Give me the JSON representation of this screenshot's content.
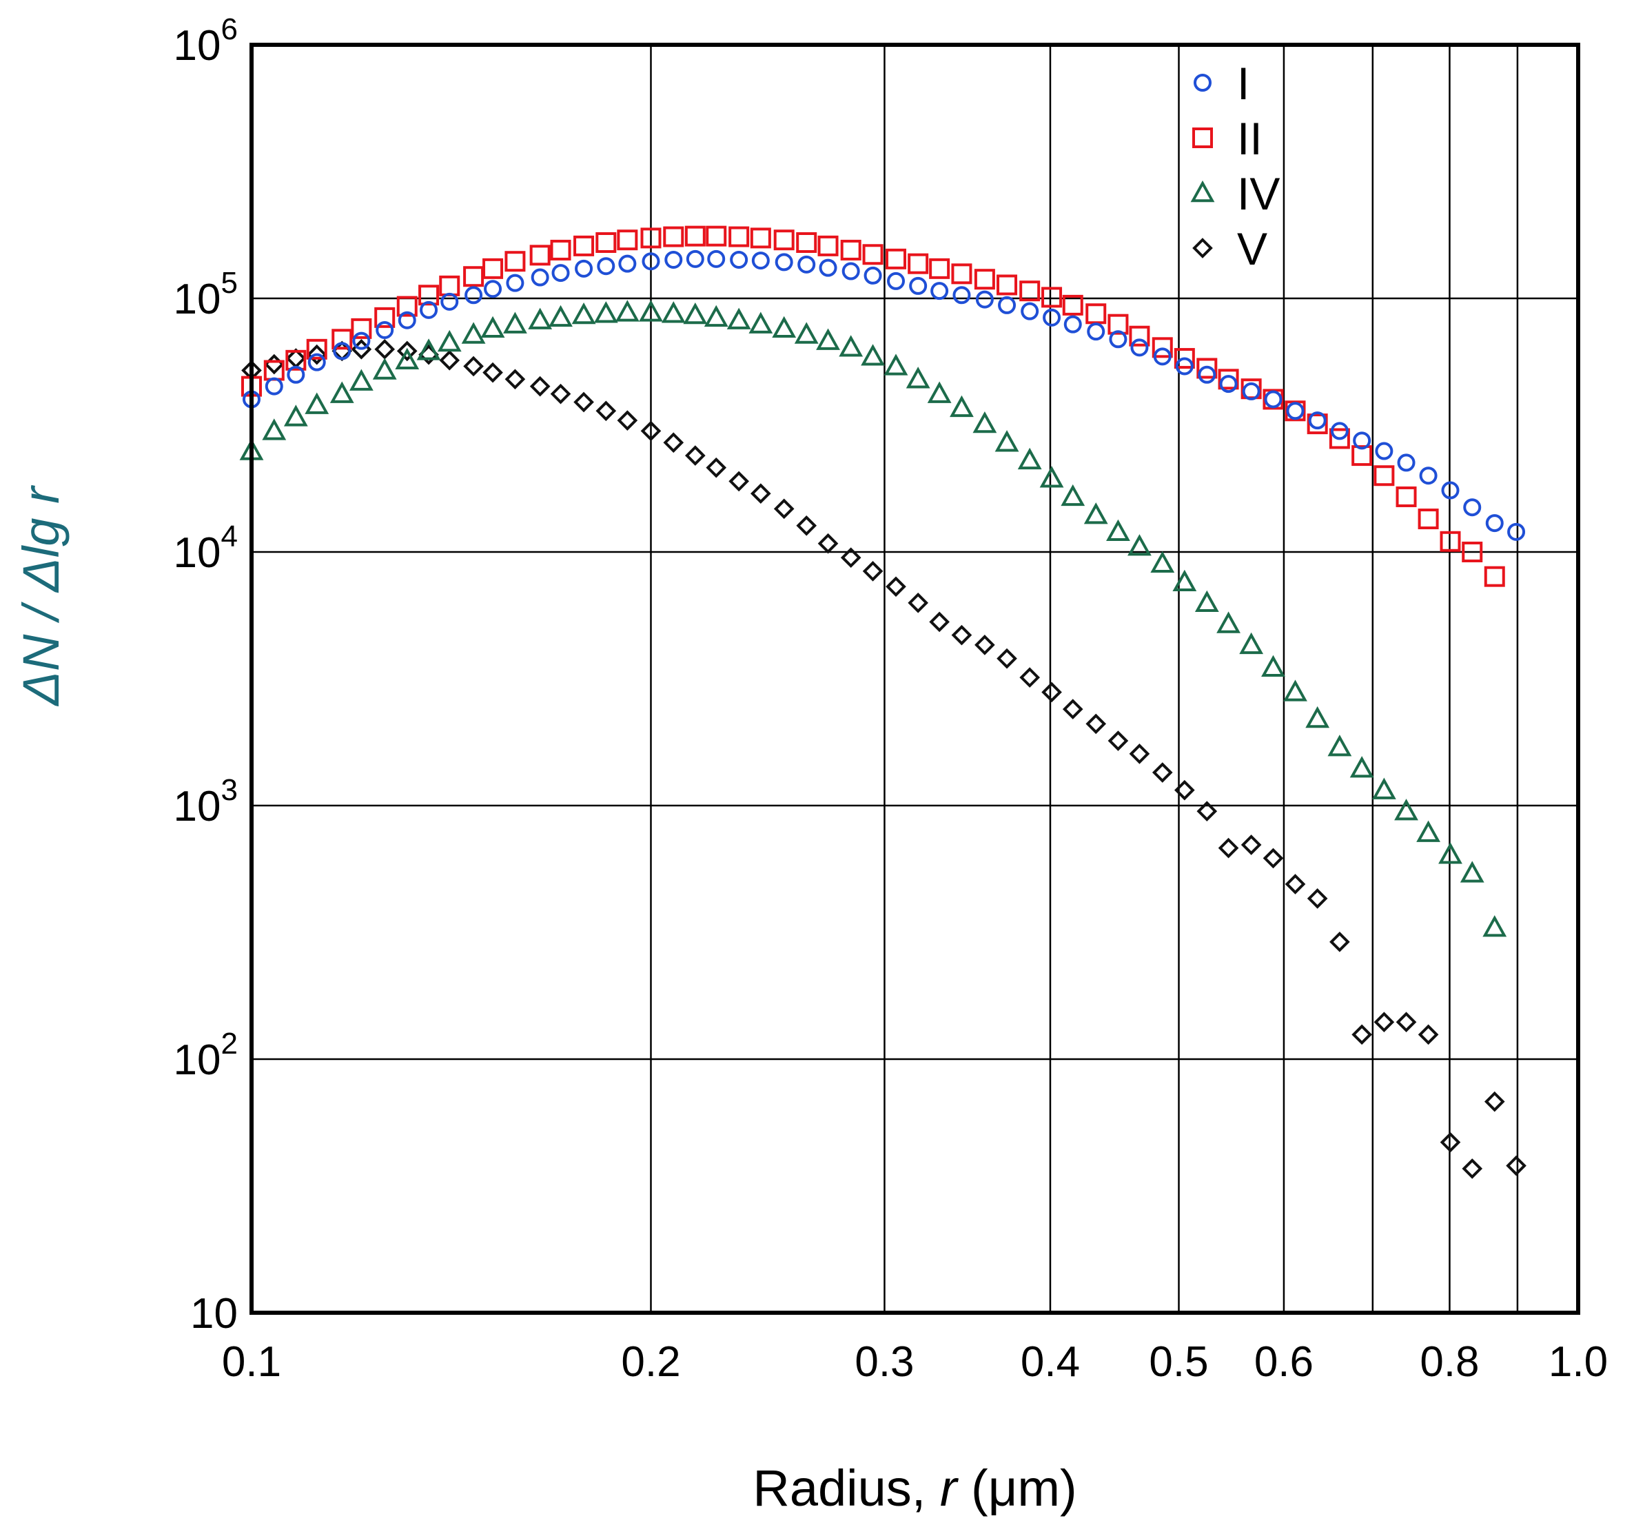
{
  "chart_data": {
    "type": "scatter",
    "title": "",
    "xlabel": {
      "prefix": "Radius, ",
      "var": "r",
      "suffix": " (μm)"
    },
    "ylabel": {
      "part1": "ΔN / Δ",
      "part2": "lg",
      "part3": " r"
    },
    "xscale": "log",
    "yscale": "log",
    "xlim": [
      0.1,
      1.0
    ],
    "ylim": [
      10,
      1000000
    ],
    "grid": true,
    "legend_position": "top-right",
    "x_ticks": [
      {
        "value": 0.1,
        "label": "0.1"
      },
      {
        "value": 0.2,
        "label": "0.2"
      },
      {
        "value": 0.3,
        "label": "0.3"
      },
      {
        "value": 0.4,
        "label": "0.4"
      },
      {
        "value": 0.5,
        "label": "0.5"
      },
      {
        "value": 0.6,
        "label": "0.6"
      },
      {
        "value": 0.8,
        "label": "0.8"
      },
      {
        "value": 1.0,
        "label": "1.0"
      }
    ],
    "x_extra_gridlines": [
      0.7,
      0.9
    ],
    "y_ticks": [
      {
        "value": 10,
        "base": "10",
        "exp": ""
      },
      {
        "value": 100,
        "base": "10",
        "exp": "2"
      },
      {
        "value": 1000,
        "base": "10",
        "exp": "3"
      },
      {
        "value": 10000,
        "base": "10",
        "exp": "4"
      },
      {
        "value": 100000,
        "base": "10",
        "exp": "5"
      },
      {
        "value": 1000000,
        "base": "10",
        "exp": "6"
      }
    ],
    "series": [
      {
        "name": "I",
        "marker": "circle",
        "color": "#1f4fd6",
        "points": [
          [
            0.1,
            40000
          ],
          [
            0.104,
            45000
          ],
          [
            0.108,
            50000
          ],
          [
            0.112,
            56000
          ],
          [
            0.117,
            62000
          ],
          [
            0.121,
            68000
          ],
          [
            0.126,
            75000
          ],
          [
            0.131,
            82000
          ],
          [
            0.136,
            90000
          ],
          [
            0.141,
            97000
          ],
          [
            0.147,
            103000
          ],
          [
            0.152,
            109000
          ],
          [
            0.158,
            115000
          ],
          [
            0.165,
            121000
          ],
          [
            0.171,
            126000
          ],
          [
            0.178,
            131000
          ],
          [
            0.185,
            134000
          ],
          [
            0.192,
            137000
          ],
          [
            0.2,
            140000
          ],
          [
            0.208,
            142000
          ],
          [
            0.216,
            143000
          ],
          [
            0.224,
            143000
          ],
          [
            0.233,
            142000
          ],
          [
            0.242,
            141000
          ],
          [
            0.252,
            139000
          ],
          [
            0.262,
            136000
          ],
          [
            0.272,
            132000
          ],
          [
            0.283,
            128000
          ],
          [
            0.294,
            123000
          ],
          [
            0.306,
            117000
          ],
          [
            0.318,
            112000
          ],
          [
            0.33,
            107000
          ],
          [
            0.343,
            103000
          ],
          [
            0.357,
            99000
          ],
          [
            0.371,
            94000
          ],
          [
            0.386,
            89000
          ],
          [
            0.401,
            84000
          ],
          [
            0.416,
            79000
          ],
          [
            0.433,
            74000
          ],
          [
            0.45,
            69000
          ],
          [
            0.467,
            64000
          ],
          [
            0.486,
            59000
          ],
          [
            0.505,
            54000
          ],
          [
            0.525,
            50000
          ],
          [
            0.545,
            46000
          ],
          [
            0.567,
            43000
          ],
          [
            0.589,
            40000
          ],
          [
            0.612,
            36000
          ],
          [
            0.636,
            33000
          ],
          [
            0.661,
            30000
          ],
          [
            0.687,
            27500
          ],
          [
            0.714,
            25000
          ],
          [
            0.742,
            22500
          ],
          [
            0.771,
            20000
          ],
          [
            0.801,
            17500
          ],
          [
            0.832,
            15000
          ],
          [
            0.865,
            13000
          ],
          [
            0.898,
            12000
          ]
        ]
      },
      {
        "name": "II",
        "marker": "square",
        "color": "#e8141c",
        "points": [
          [
            0.1,
            45000
          ],
          [
            0.104,
            52000
          ],
          [
            0.108,
            57000
          ],
          [
            0.112,
            63000
          ],
          [
            0.117,
            69000
          ],
          [
            0.121,
            76000
          ],
          [
            0.126,
            84000
          ],
          [
            0.131,
            93000
          ],
          [
            0.136,
            103000
          ],
          [
            0.141,
            112000
          ],
          [
            0.147,
            122000
          ],
          [
            0.152,
            131000
          ],
          [
            0.158,
            140000
          ],
          [
            0.165,
            148000
          ],
          [
            0.171,
            155000
          ],
          [
            0.178,
            161000
          ],
          [
            0.185,
            166000
          ],
          [
            0.192,
            170000
          ],
          [
            0.2,
            173000
          ],
          [
            0.208,
            175000
          ],
          [
            0.216,
            176000
          ],
          [
            0.224,
            176000
          ],
          [
            0.233,
            175000
          ],
          [
            0.242,
            173000
          ],
          [
            0.252,
            170000
          ],
          [
            0.262,
            166000
          ],
          [
            0.272,
            161000
          ],
          [
            0.283,
            155000
          ],
          [
            0.294,
            149000
          ],
          [
            0.306,
            143000
          ],
          [
            0.318,
            137000
          ],
          [
            0.33,
            131000
          ],
          [
            0.343,
            125000
          ],
          [
            0.357,
            119000
          ],
          [
            0.371,
            113000
          ],
          [
            0.386,
            107000
          ],
          [
            0.401,
            101000
          ],
          [
            0.416,
            94000
          ],
          [
            0.433,
            87000
          ],
          [
            0.45,
            79000
          ],
          [
            0.467,
            71000
          ],
          [
            0.486,
            64000
          ],
          [
            0.505,
            58000
          ],
          [
            0.525,
            53000
          ],
          [
            0.545,
            48000
          ],
          [
            0.567,
            44000
          ],
          [
            0.589,
            40000
          ],
          [
            0.612,
            36000
          ],
          [
            0.636,
            32000
          ],
          [
            0.661,
            28000
          ],
          [
            0.687,
            24000
          ],
          [
            0.714,
            20000
          ],
          [
            0.742,
            16500
          ],
          [
            0.771,
            13500
          ],
          [
            0.801,
            11000
          ],
          [
            0.832,
            10000
          ],
          [
            0.865,
            8000
          ]
        ]
      },
      {
        "name": "IV",
        "marker": "triangle",
        "color": "#1c6b4a",
        "points": [
          [
            0.1,
            25000
          ],
          [
            0.104,
            30000
          ],
          [
            0.108,
            34000
          ],
          [
            0.112,
            38000
          ],
          [
            0.117,
            42000
          ],
          [
            0.121,
            47000
          ],
          [
            0.126,
            52000
          ],
          [
            0.131,
            57000
          ],
          [
            0.136,
            62000
          ],
          [
            0.141,
            67000
          ],
          [
            0.147,
            72000
          ],
          [
            0.152,
            76000
          ],
          [
            0.158,
            79000
          ],
          [
            0.165,
            82000
          ],
          [
            0.171,
            84000
          ],
          [
            0.178,
            86000
          ],
          [
            0.185,
            87000
          ],
          [
            0.192,
            88000
          ],
          [
            0.2,
            88000
          ],
          [
            0.208,
            87000
          ],
          [
            0.216,
            86000
          ],
          [
            0.224,
            84000
          ],
          [
            0.233,
            82000
          ],
          [
            0.242,
            79000
          ],
          [
            0.252,
            76000
          ],
          [
            0.262,
            72000
          ],
          [
            0.272,
            68000
          ],
          [
            0.283,
            64000
          ],
          [
            0.294,
            59000
          ],
          [
            0.306,
            54000
          ],
          [
            0.318,
            48000
          ],
          [
            0.33,
            42000
          ],
          [
            0.343,
            37000
          ],
          [
            0.357,
            32000
          ],
          [
            0.371,
            27000
          ],
          [
            0.386,
            23000
          ],
          [
            0.401,
            19500
          ],
          [
            0.416,
            16500
          ],
          [
            0.433,
            14000
          ],
          [
            0.45,
            12000
          ],
          [
            0.467,
            10500
          ],
          [
            0.486,
            9000
          ],
          [
            0.505,
            7600
          ],
          [
            0.525,
            6300
          ],
          [
            0.545,
            5200
          ],
          [
            0.567,
            4300
          ],
          [
            0.589,
            3500
          ],
          [
            0.612,
            2800
          ],
          [
            0.636,
            2200
          ],
          [
            0.661,
            1700
          ],
          [
            0.687,
            1400
          ],
          [
            0.714,
            1150
          ],
          [
            0.742,
            950
          ],
          [
            0.771,
            780
          ],
          [
            0.801,
            640
          ],
          [
            0.832,
            540
          ],
          [
            0.865,
            330
          ]
        ]
      },
      {
        "name": "V",
        "marker": "diamond",
        "color": "#111111",
        "points": [
          [
            0.1,
            52000
          ],
          [
            0.104,
            55000
          ],
          [
            0.108,
            58000
          ],
          [
            0.112,
            60000
          ],
          [
            0.117,
            62000
          ],
          [
            0.121,
            63000
          ],
          [
            0.126,
            63000
          ],
          [
            0.131,
            62000
          ],
          [
            0.136,
            60000
          ],
          [
            0.141,
            57000
          ],
          [
            0.147,
            54000
          ],
          [
            0.152,
            51000
          ],
          [
            0.158,
            48000
          ],
          [
            0.165,
            45000
          ],
          [
            0.171,
            42000
          ],
          [
            0.178,
            39000
          ],
          [
            0.185,
            36000
          ],
          [
            0.192,
            33000
          ],
          [
            0.2,
            30000
          ],
          [
            0.208,
            27000
          ],
          [
            0.216,
            24000
          ],
          [
            0.224,
            21500
          ],
          [
            0.233,
            19000
          ],
          [
            0.242,
            17000
          ],
          [
            0.252,
            14800
          ],
          [
            0.262,
            12700
          ],
          [
            0.272,
            10800
          ],
          [
            0.283,
            9500
          ],
          [
            0.294,
            8400
          ],
          [
            0.306,
            7300
          ],
          [
            0.318,
            6300
          ],
          [
            0.33,
            5300
          ],
          [
            0.343,
            4700
          ],
          [
            0.357,
            4300
          ],
          [
            0.371,
            3800
          ],
          [
            0.386,
            3200
          ],
          [
            0.401,
            2800
          ],
          [
            0.416,
            2400
          ],
          [
            0.433,
            2100
          ],
          [
            0.45,
            1800
          ],
          [
            0.467,
            1600
          ],
          [
            0.486,
            1350
          ],
          [
            0.505,
            1150
          ],
          [
            0.525,
            950
          ],
          [
            0.545,
            680
          ],
          [
            0.567,
            700
          ],
          [
            0.589,
            620
          ],
          [
            0.612,
            490
          ],
          [
            0.636,
            430
          ],
          [
            0.661,
            290
          ],
          [
            0.687,
            125
          ],
          [
            0.714,
            140
          ],
          [
            0.742,
            140
          ],
          [
            0.771,
            125
          ],
          [
            0.801,
            47
          ],
          [
            0.832,
            37
          ],
          [
            0.865,
            68
          ],
          [
            0.898,
            38
          ]
        ]
      }
    ]
  }
}
